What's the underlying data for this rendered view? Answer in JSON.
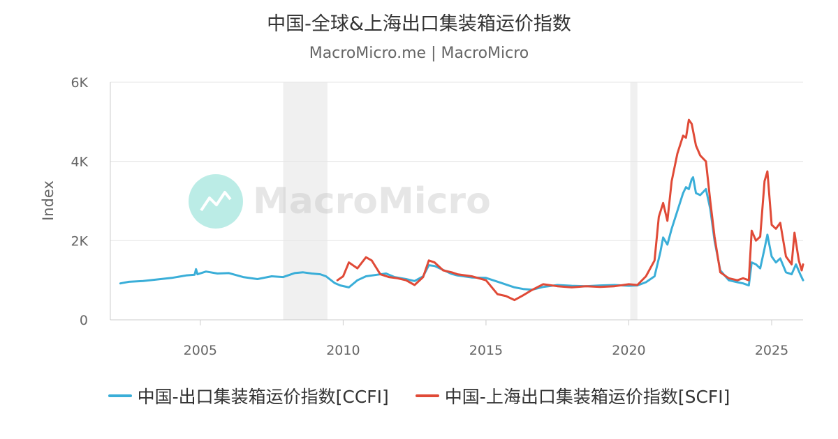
{
  "title": "中国-全球&上海出口集装箱运价指数",
  "subtitle": "MacroMicro.me | MacroMicro",
  "watermark": "MacroMicro",
  "colors": {
    "ccfi": "#3aaed8",
    "scfi": "#e04a37",
    "grid": "#e6e6e6",
    "shade": "#f0f0f0",
    "watermark_logo": "#6ad6c8",
    "watermark_text": "#d8d8d8"
  },
  "chart_data": {
    "type": "line",
    "ylabel": "Index",
    "ylim": [
      0,
      6000
    ],
    "xlim": [
      2001.85,
      2026.1
    ],
    "y_ticks": [
      {
        "value": 0,
        "label": "0"
      },
      {
        "value": 2000,
        "label": "2K"
      },
      {
        "value": 4000,
        "label": "4K"
      },
      {
        "value": 6000,
        "label": "6K"
      }
    ],
    "x_ticks": [
      {
        "value": 2005,
        "label": "2005"
      },
      {
        "value": 2010,
        "label": "2010"
      },
      {
        "value": 2015,
        "label": "2015"
      },
      {
        "value": 2020,
        "label": "2020"
      },
      {
        "value": 2025,
        "label": "2025"
      }
    ],
    "shaded_ranges": [
      [
        2007.9,
        2009.45
      ],
      [
        2020.05,
        2020.3
      ]
    ],
    "grid": true,
    "legend_position": "bottom",
    "series": [
      {
        "name": "中国-出口集装箱运价指数[CCFI]",
        "color": "#3aaed8",
        "points": [
          [
            2002.2,
            920
          ],
          [
            2002.5,
            960
          ],
          [
            2003.0,
            980
          ],
          [
            2003.5,
            1020
          ],
          [
            2004.0,
            1060
          ],
          [
            2004.5,
            1120
          ],
          [
            2004.8,
            1140
          ],
          [
            2004.85,
            1280
          ],
          [
            2004.9,
            1150
          ],
          [
            2005.2,
            1220
          ],
          [
            2005.6,
            1170
          ],
          [
            2006.0,
            1180
          ],
          [
            2006.5,
            1080
          ],
          [
            2007.0,
            1030
          ],
          [
            2007.5,
            1100
          ],
          [
            2007.9,
            1080
          ],
          [
            2008.3,
            1180
          ],
          [
            2008.6,
            1200
          ],
          [
            2008.9,
            1170
          ],
          [
            2009.2,
            1150
          ],
          [
            2009.4,
            1100
          ],
          [
            2009.7,
            930
          ],
          [
            2009.9,
            870
          ],
          [
            2010.2,
            820
          ],
          [
            2010.5,
            1000
          ],
          [
            2010.8,
            1100
          ],
          [
            2011.2,
            1140
          ],
          [
            2011.5,
            1170
          ],
          [
            2011.8,
            1080
          ],
          [
            2012.2,
            1030
          ],
          [
            2012.5,
            980
          ],
          [
            2012.8,
            1100
          ],
          [
            2013.0,
            1380
          ],
          [
            2013.2,
            1360
          ],
          [
            2013.5,
            1260
          ],
          [
            2013.8,
            1160
          ],
          [
            2014.0,
            1120
          ],
          [
            2014.5,
            1070
          ],
          [
            2015.0,
            1060
          ],
          [
            2015.5,
            940
          ],
          [
            2016.0,
            820
          ],
          [
            2016.3,
            780
          ],
          [
            2016.6,
            760
          ],
          [
            2017.0,
            830
          ],
          [
            2017.5,
            880
          ],
          [
            2018.0,
            860
          ],
          [
            2018.5,
            850
          ],
          [
            2019.0,
            870
          ],
          [
            2019.5,
            880
          ],
          [
            2020.0,
            860
          ],
          [
            2020.3,
            870
          ],
          [
            2020.6,
            950
          ],
          [
            2020.9,
            1100
          ],
          [
            2021.1,
            1700
          ],
          [
            2021.2,
            2080
          ],
          [
            2021.35,
            1900
          ],
          [
            2021.5,
            2300
          ],
          [
            2021.7,
            2750
          ],
          [
            2021.9,
            3200
          ],
          [
            2022.0,
            3350
          ],
          [
            2022.1,
            3300
          ],
          [
            2022.2,
            3550
          ],
          [
            2022.25,
            3600
          ],
          [
            2022.35,
            3200
          ],
          [
            2022.5,
            3150
          ],
          [
            2022.7,
            3300
          ],
          [
            2022.85,
            2800
          ],
          [
            2023.0,
            2000
          ],
          [
            2023.2,
            1250
          ],
          [
            2023.5,
            1000
          ],
          [
            2023.8,
            950
          ],
          [
            2024.0,
            920
          ],
          [
            2024.2,
            870
          ],
          [
            2024.3,
            1450
          ],
          [
            2024.45,
            1400
          ],
          [
            2024.6,
            1300
          ],
          [
            2024.75,
            1800
          ],
          [
            2024.85,
            2150
          ],
          [
            2025.0,
            1600
          ],
          [
            2025.15,
            1450
          ],
          [
            2025.3,
            1550
          ],
          [
            2025.5,
            1200
          ],
          [
            2025.7,
            1150
          ],
          [
            2025.85,
            1400
          ],
          [
            2026.0,
            1150
          ],
          [
            2026.1,
            1000
          ]
        ]
      },
      {
        "name": "中国-上海出口集装箱运价指数[SCFI]",
        "color": "#e04a37",
        "points": [
          [
            2009.8,
            1000
          ],
          [
            2010.0,
            1100
          ],
          [
            2010.2,
            1450
          ],
          [
            2010.5,
            1300
          ],
          [
            2010.8,
            1580
          ],
          [
            2011.0,
            1500
          ],
          [
            2011.3,
            1150
          ],
          [
            2011.6,
            1080
          ],
          [
            2011.9,
            1050
          ],
          [
            2012.2,
            1000
          ],
          [
            2012.5,
            880
          ],
          [
            2012.8,
            1080
          ],
          [
            2013.0,
            1500
          ],
          [
            2013.2,
            1450
          ],
          [
            2013.5,
            1250
          ],
          [
            2013.8,
            1200
          ],
          [
            2014.0,
            1150
          ],
          [
            2014.5,
            1100
          ],
          [
            2015.0,
            1000
          ],
          [
            2015.4,
            650
          ],
          [
            2015.7,
            600
          ],
          [
            2016.0,
            500
          ],
          [
            2016.3,
            620
          ],
          [
            2016.6,
            750
          ],
          [
            2017.0,
            900
          ],
          [
            2017.5,
            850
          ],
          [
            2018.0,
            820
          ],
          [
            2018.5,
            850
          ],
          [
            2019.0,
            830
          ],
          [
            2019.5,
            850
          ],
          [
            2020.0,
            900
          ],
          [
            2020.3,
            880
          ],
          [
            2020.6,
            1100
          ],
          [
            2020.9,
            1500
          ],
          [
            2021.05,
            2600
          ],
          [
            2021.2,
            2950
          ],
          [
            2021.35,
            2500
          ],
          [
            2021.5,
            3500
          ],
          [
            2021.7,
            4200
          ],
          [
            2021.9,
            4650
          ],
          [
            2022.0,
            4600
          ],
          [
            2022.1,
            5050
          ],
          [
            2022.2,
            4950
          ],
          [
            2022.35,
            4400
          ],
          [
            2022.5,
            4150
          ],
          [
            2022.7,
            4000
          ],
          [
            2022.85,
            3000
          ],
          [
            2023.0,
            2100
          ],
          [
            2023.2,
            1200
          ],
          [
            2023.5,
            1050
          ],
          [
            2023.8,
            1000
          ],
          [
            2024.0,
            1050
          ],
          [
            2024.2,
            1000
          ],
          [
            2024.3,
            2250
          ],
          [
            2024.45,
            2000
          ],
          [
            2024.6,
            2100
          ],
          [
            2024.75,
            3500
          ],
          [
            2024.85,
            3750
          ],
          [
            2025.0,
            2400
          ],
          [
            2025.15,
            2300
          ],
          [
            2025.3,
            2450
          ],
          [
            2025.5,
            1600
          ],
          [
            2025.7,
            1400
          ],
          [
            2025.8,
            2200
          ],
          [
            2025.95,
            1500
          ],
          [
            2026.05,
            1250
          ],
          [
            2026.1,
            1400
          ]
        ]
      }
    ]
  }
}
